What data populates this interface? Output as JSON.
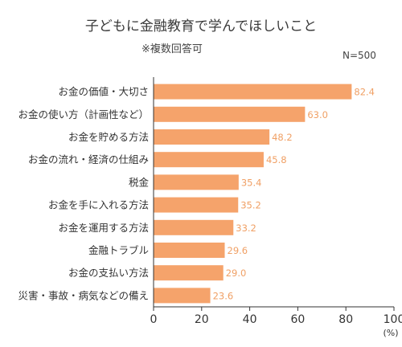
{
  "title": "子どもに金融教育で学んでほしいこと",
  "subtitle": "※複数回答可",
  "note": "N=500",
  "chart_data": {
    "type": "bar",
    "orientation": "horizontal",
    "categories": [
      "お金の価値・大切さ",
      "お金の使い方（計画性など）",
      "お金を貯める方法",
      "お金の流れ・経済の仕組み",
      "税金",
      "お金を手に入れる方法",
      "お金を運用する方法",
      "金融トラブル",
      "お金の支払い方法",
      "災害・事故・病気などの備え"
    ],
    "values": [
      82.4,
      63.0,
      48.2,
      45.8,
      35.4,
      35.2,
      33.2,
      29.6,
      29.0,
      23.6
    ],
    "value_labels": [
      "82.4",
      "63.0",
      "48.2",
      "45.8",
      "35.4",
      "35.2",
      "33.2",
      "29.6",
      "29.0",
      "23.6"
    ],
    "xlim": [
      0,
      100
    ],
    "xticks": [
      0,
      20,
      40,
      60,
      80,
      100
    ],
    "unit": "(%)",
    "bar_color": "#f5a36b",
    "value_label_color": "#f0a065",
    "grid": false
  }
}
